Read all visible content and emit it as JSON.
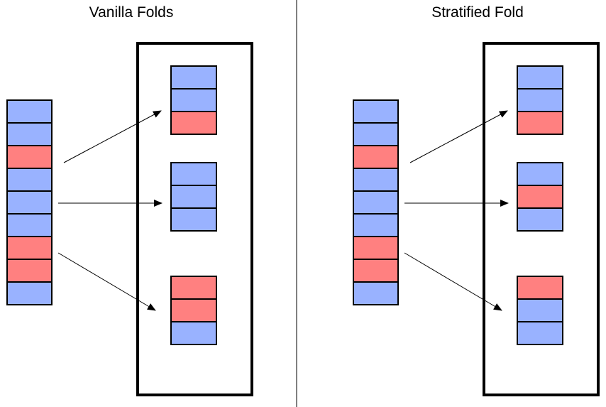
{
  "colors": {
    "blue": "#99b2ff",
    "red": "#ff8080",
    "outline": "#000000",
    "background": "#ffffff"
  },
  "panels": [
    {
      "id": "vanilla",
      "title": "Vanilla Folds",
      "dataset": [
        "blue",
        "blue",
        "red",
        "blue",
        "blue",
        "blue",
        "red",
        "red",
        "blue"
      ],
      "folds": [
        [
          "blue",
          "blue",
          "red"
        ],
        [
          "blue",
          "blue",
          "blue"
        ],
        [
          "red",
          "red",
          "blue"
        ]
      ]
    },
    {
      "id": "stratified",
      "title": "Stratified Fold",
      "dataset": [
        "blue",
        "blue",
        "red",
        "blue",
        "blue",
        "blue",
        "red",
        "red",
        "blue"
      ],
      "folds": [
        [
          "blue",
          "blue",
          "red"
        ],
        [
          "blue",
          "red",
          "blue"
        ],
        [
          "red",
          "blue",
          "blue"
        ]
      ]
    }
  ]
}
